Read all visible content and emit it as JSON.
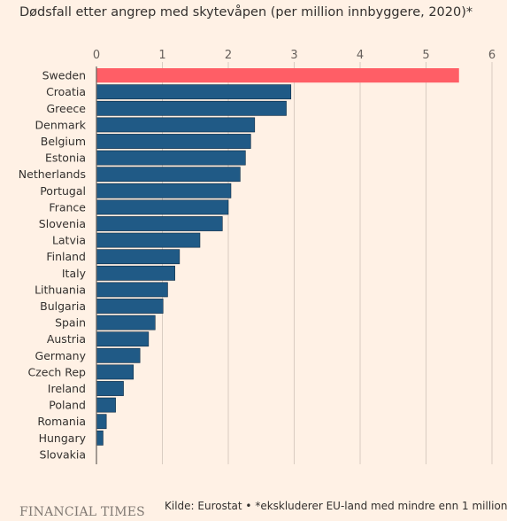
{
  "chart_data": {
    "type": "bar",
    "orientation": "horizontal",
    "title": "Dødsfall etter angrep med skytevåpen (per million innbyggere, 2020)*",
    "categories": [
      "Sweden",
      "Croatia",
      "Greece",
      "Denmark",
      "Belgium",
      "Estonia",
      "Netherlands",
      "Portugal",
      "France",
      "Slovenia",
      "Latvia",
      "Finland",
      "Italy",
      "Lithuania",
      "Bulgaria",
      "Spain",
      "Austria",
      "Germany",
      "Czech Rep",
      "Ireland",
      "Poland",
      "Romania",
      "Hungary",
      "Slovakia"
    ],
    "values": [
      5.5,
      2.95,
      2.88,
      2.4,
      2.34,
      2.26,
      2.18,
      2.04,
      2.0,
      1.91,
      1.57,
      1.26,
      1.19,
      1.08,
      1.01,
      0.89,
      0.79,
      0.66,
      0.56,
      0.41,
      0.29,
      0.15,
      0.1,
      0.0
    ],
    "highlight": "Sweden",
    "xlim": [
      0,
      6
    ],
    "xticks": [
      "0",
      "1",
      "2",
      "3",
      "4",
      "5",
      "6"
    ],
    "grid": true,
    "colors": {
      "highlight": "#ff5e66",
      "bar": "#205a86",
      "bar_edge": "#0c2a44",
      "grid": "#d9ccc1",
      "background": "#fff1e5"
    }
  },
  "footer": {
    "logo": "FINANCIAL TIMES",
    "source": "Kilde: Eurostat • *ekskluderer EU-land med mindre enn 1 million"
  }
}
